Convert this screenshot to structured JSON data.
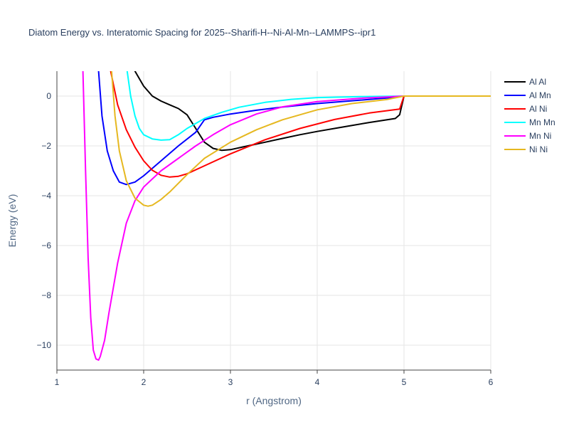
{
  "chart_data": {
    "type": "line",
    "title": "Diatom Energy vs. Interatomic Spacing for 2025--Sharifi-H--Ni-Al-Mn--LAMMPS--ipr1",
    "xlabel": "r (Angstrom)",
    "ylabel": "Energy (eV)",
    "xlim": [
      1,
      6
    ],
    "ylim": [
      -11,
      1
    ],
    "xticks": [
      1,
      2,
      3,
      4,
      5,
      6
    ],
    "yticks": [
      0,
      -2,
      -4,
      -6,
      -8,
      -10
    ],
    "xtick_labels": [
      "1",
      "2",
      "3",
      "4",
      "5",
      "6"
    ],
    "ytick_labels": [
      "0",
      "−2",
      "−4",
      "−6",
      "−8",
      "−10"
    ],
    "grid": true,
    "legend_position": "top-right",
    "series": [
      {
        "name": "Al Al",
        "color": "#000000",
        "x": [
          1.9,
          2.0,
          2.1,
          2.2,
          2.3,
          2.4,
          2.5,
          2.6,
          2.7,
          2.8,
          2.9,
          3.0,
          3.2,
          3.4,
          3.6,
          3.8,
          4.0,
          4.3,
          4.6,
          4.9,
          4.95,
          5.0,
          6.0
        ],
        "y": [
          1.0,
          0.4,
          0.0,
          -0.2,
          -0.35,
          -0.5,
          -0.75,
          -1.3,
          -1.85,
          -2.1,
          -2.18,
          -2.15,
          -2.0,
          -1.85,
          -1.7,
          -1.55,
          -1.42,
          -1.24,
          -1.06,
          -0.9,
          -0.75,
          0.0,
          0.0
        ]
      },
      {
        "name": "Al Mn",
        "color": "#0000ff",
        "x": [
          1.48,
          1.52,
          1.58,
          1.65,
          1.72,
          1.8,
          1.9,
          2.0,
          2.2,
          2.4,
          2.6,
          2.7,
          2.8,
          3.0,
          3.3,
          3.6,
          4.0,
          4.4,
          4.8,
          5.0,
          6.0
        ],
        "y": [
          1.0,
          -0.8,
          -2.2,
          -3.0,
          -3.45,
          -3.55,
          -3.45,
          -3.2,
          -2.6,
          -2.0,
          -1.45,
          -0.95,
          -0.85,
          -0.72,
          -0.57,
          -0.44,
          -0.3,
          -0.19,
          -0.08,
          0.0,
          0.0
        ]
      },
      {
        "name": "Al Ni",
        "color": "#ff0000",
        "x": [
          1.62,
          1.7,
          1.8,
          1.9,
          2.0,
          2.1,
          2.2,
          2.3,
          2.4,
          2.5,
          2.7,
          3.0,
          3.4,
          3.8,
          4.2,
          4.6,
          4.95,
          5.0,
          6.0
        ],
        "y": [
          1.0,
          -0.35,
          -1.35,
          -2.05,
          -2.6,
          -2.98,
          -3.18,
          -3.25,
          -3.22,
          -3.12,
          -2.8,
          -2.32,
          -1.75,
          -1.3,
          -0.94,
          -0.68,
          -0.52,
          0.0,
          0.0
        ]
      },
      {
        "name": "Mn Mn",
        "color": "#00ffff",
        "x": [
          1.81,
          1.85,
          1.9,
          1.95,
          2.0,
          2.1,
          2.2,
          2.3,
          2.4,
          2.5,
          2.6,
          2.7,
          2.9,
          3.1,
          3.4,
          3.7,
          4.0,
          4.5,
          5.0,
          6.0
        ],
        "y": [
          1.0,
          0.0,
          -0.8,
          -1.3,
          -1.55,
          -1.72,
          -1.77,
          -1.75,
          -1.55,
          -1.3,
          -1.1,
          -0.9,
          -0.65,
          -0.45,
          -0.25,
          -0.13,
          -0.06,
          -0.02,
          0.0,
          0.0
        ]
      },
      {
        "name": "Mn Ni",
        "color": "#ff00ff",
        "x": [
          1.3,
          1.33,
          1.36,
          1.39,
          1.42,
          1.45,
          1.48,
          1.5,
          1.55,
          1.6,
          1.7,
          1.8,
          1.9,
          2.0,
          2.2,
          2.4,
          2.6,
          2.8,
          3.0,
          3.3,
          3.6,
          4.0,
          4.5,
          5.0,
          6.0
        ],
        "y": [
          1.0,
          -3.0,
          -6.5,
          -8.9,
          -10.2,
          -10.55,
          -10.6,
          -10.45,
          -9.8,
          -8.7,
          -6.7,
          -5.1,
          -4.2,
          -3.65,
          -3.0,
          -2.5,
          -2.0,
          -1.55,
          -1.15,
          -0.72,
          -0.43,
          -0.22,
          -0.09,
          0.0,
          0.0
        ]
      },
      {
        "name": "Ni Ni",
        "color": "#e6b820",
        "x": [
          1.63,
          1.67,
          1.72,
          1.8,
          1.9,
          2.0,
          2.05,
          2.1,
          2.2,
          2.3,
          2.5,
          2.7,
          3.0,
          3.3,
          3.6,
          4.0,
          4.4,
          4.8,
          5.0,
          6.0
        ],
        "y": [
          1.0,
          -0.8,
          -2.2,
          -3.4,
          -4.1,
          -4.38,
          -4.42,
          -4.38,
          -4.15,
          -3.85,
          -3.15,
          -2.5,
          -1.85,
          -1.35,
          -0.95,
          -0.55,
          -0.3,
          -0.14,
          0.0,
          0.0
        ]
      }
    ]
  }
}
